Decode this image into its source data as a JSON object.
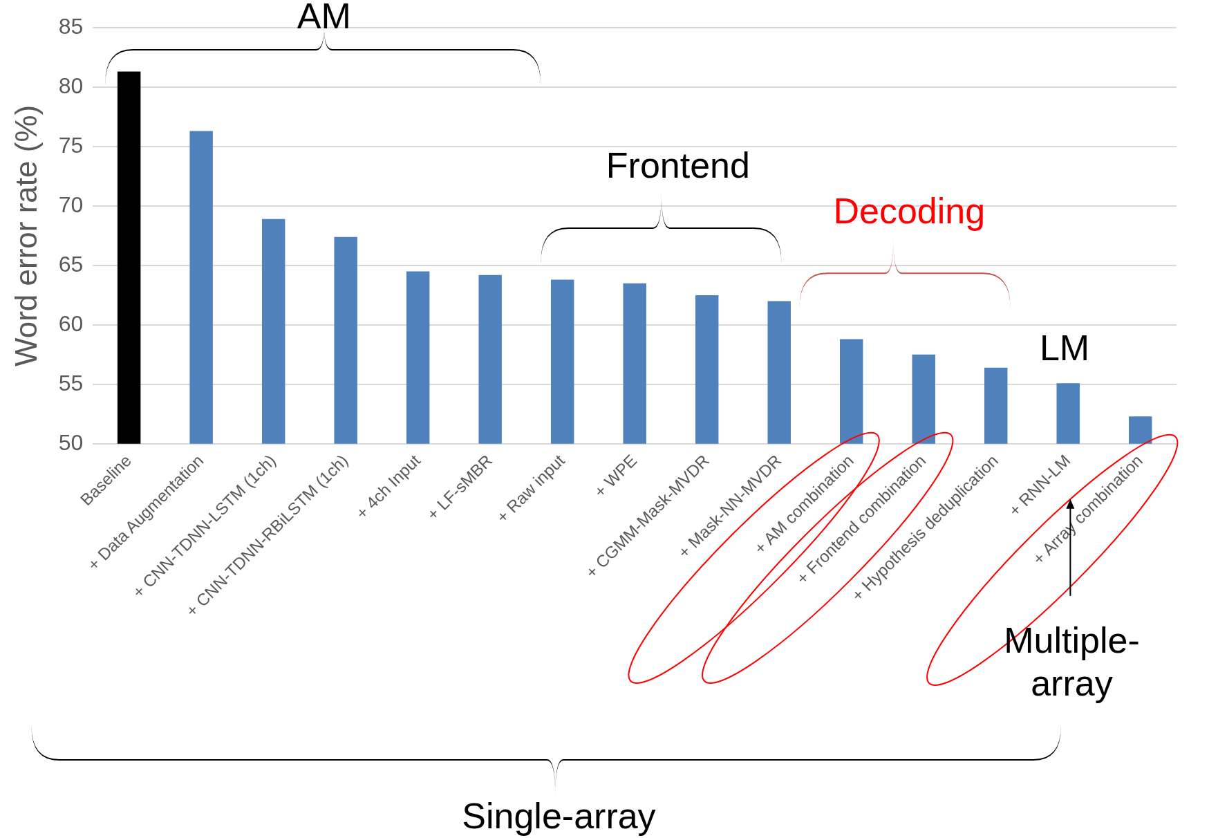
{
  "chart_data": {
    "type": "bar",
    "categories": [
      "Baseline",
      "+ Data Augmentation",
      "+ CNN-TDNN-LSTM (1ch)",
      "+ CNN-TDNN-RBiLSTM (1ch)",
      "+ 4ch Input",
      "+ LF-sMBR",
      "+ Raw input",
      "+ WPE",
      "+ CGMM-Mask-MVDR",
      "+ Mask-NN-MVDR",
      "+ AM combination",
      "+ Frontend combination",
      "+ Hypothesis deduplication",
      "+ RNN-LM",
      "+ Array combination"
    ],
    "values": [
      81.3,
      76.3,
      68.9,
      67.4,
      64.5,
      64.2,
      63.8,
      63.5,
      62.5,
      62.0,
      58.8,
      57.5,
      56.4,
      55.1,
      52.3
    ],
    "colors": [
      "#000000",
      "#4f81bd",
      "#4f81bd",
      "#4f81bd",
      "#4f81bd",
      "#4f81bd",
      "#4f81bd",
      "#4f81bd",
      "#4f81bd",
      "#4f81bd",
      "#4f81bd",
      "#4f81bd",
      "#4f81bd",
      "#4f81bd",
      "#4f81bd"
    ],
    "ylabel": "Word error rate (%)",
    "ylim": [
      50,
      85
    ],
    "yticks": [
      50,
      55,
      60,
      65,
      70,
      75,
      80,
      85
    ],
    "grid": "y",
    "legend": false,
    "annotations": [
      "AM",
      "Frontend",
      "Decoding",
      "LM",
      "Multiple-array",
      "Single-array"
    ]
  }
}
